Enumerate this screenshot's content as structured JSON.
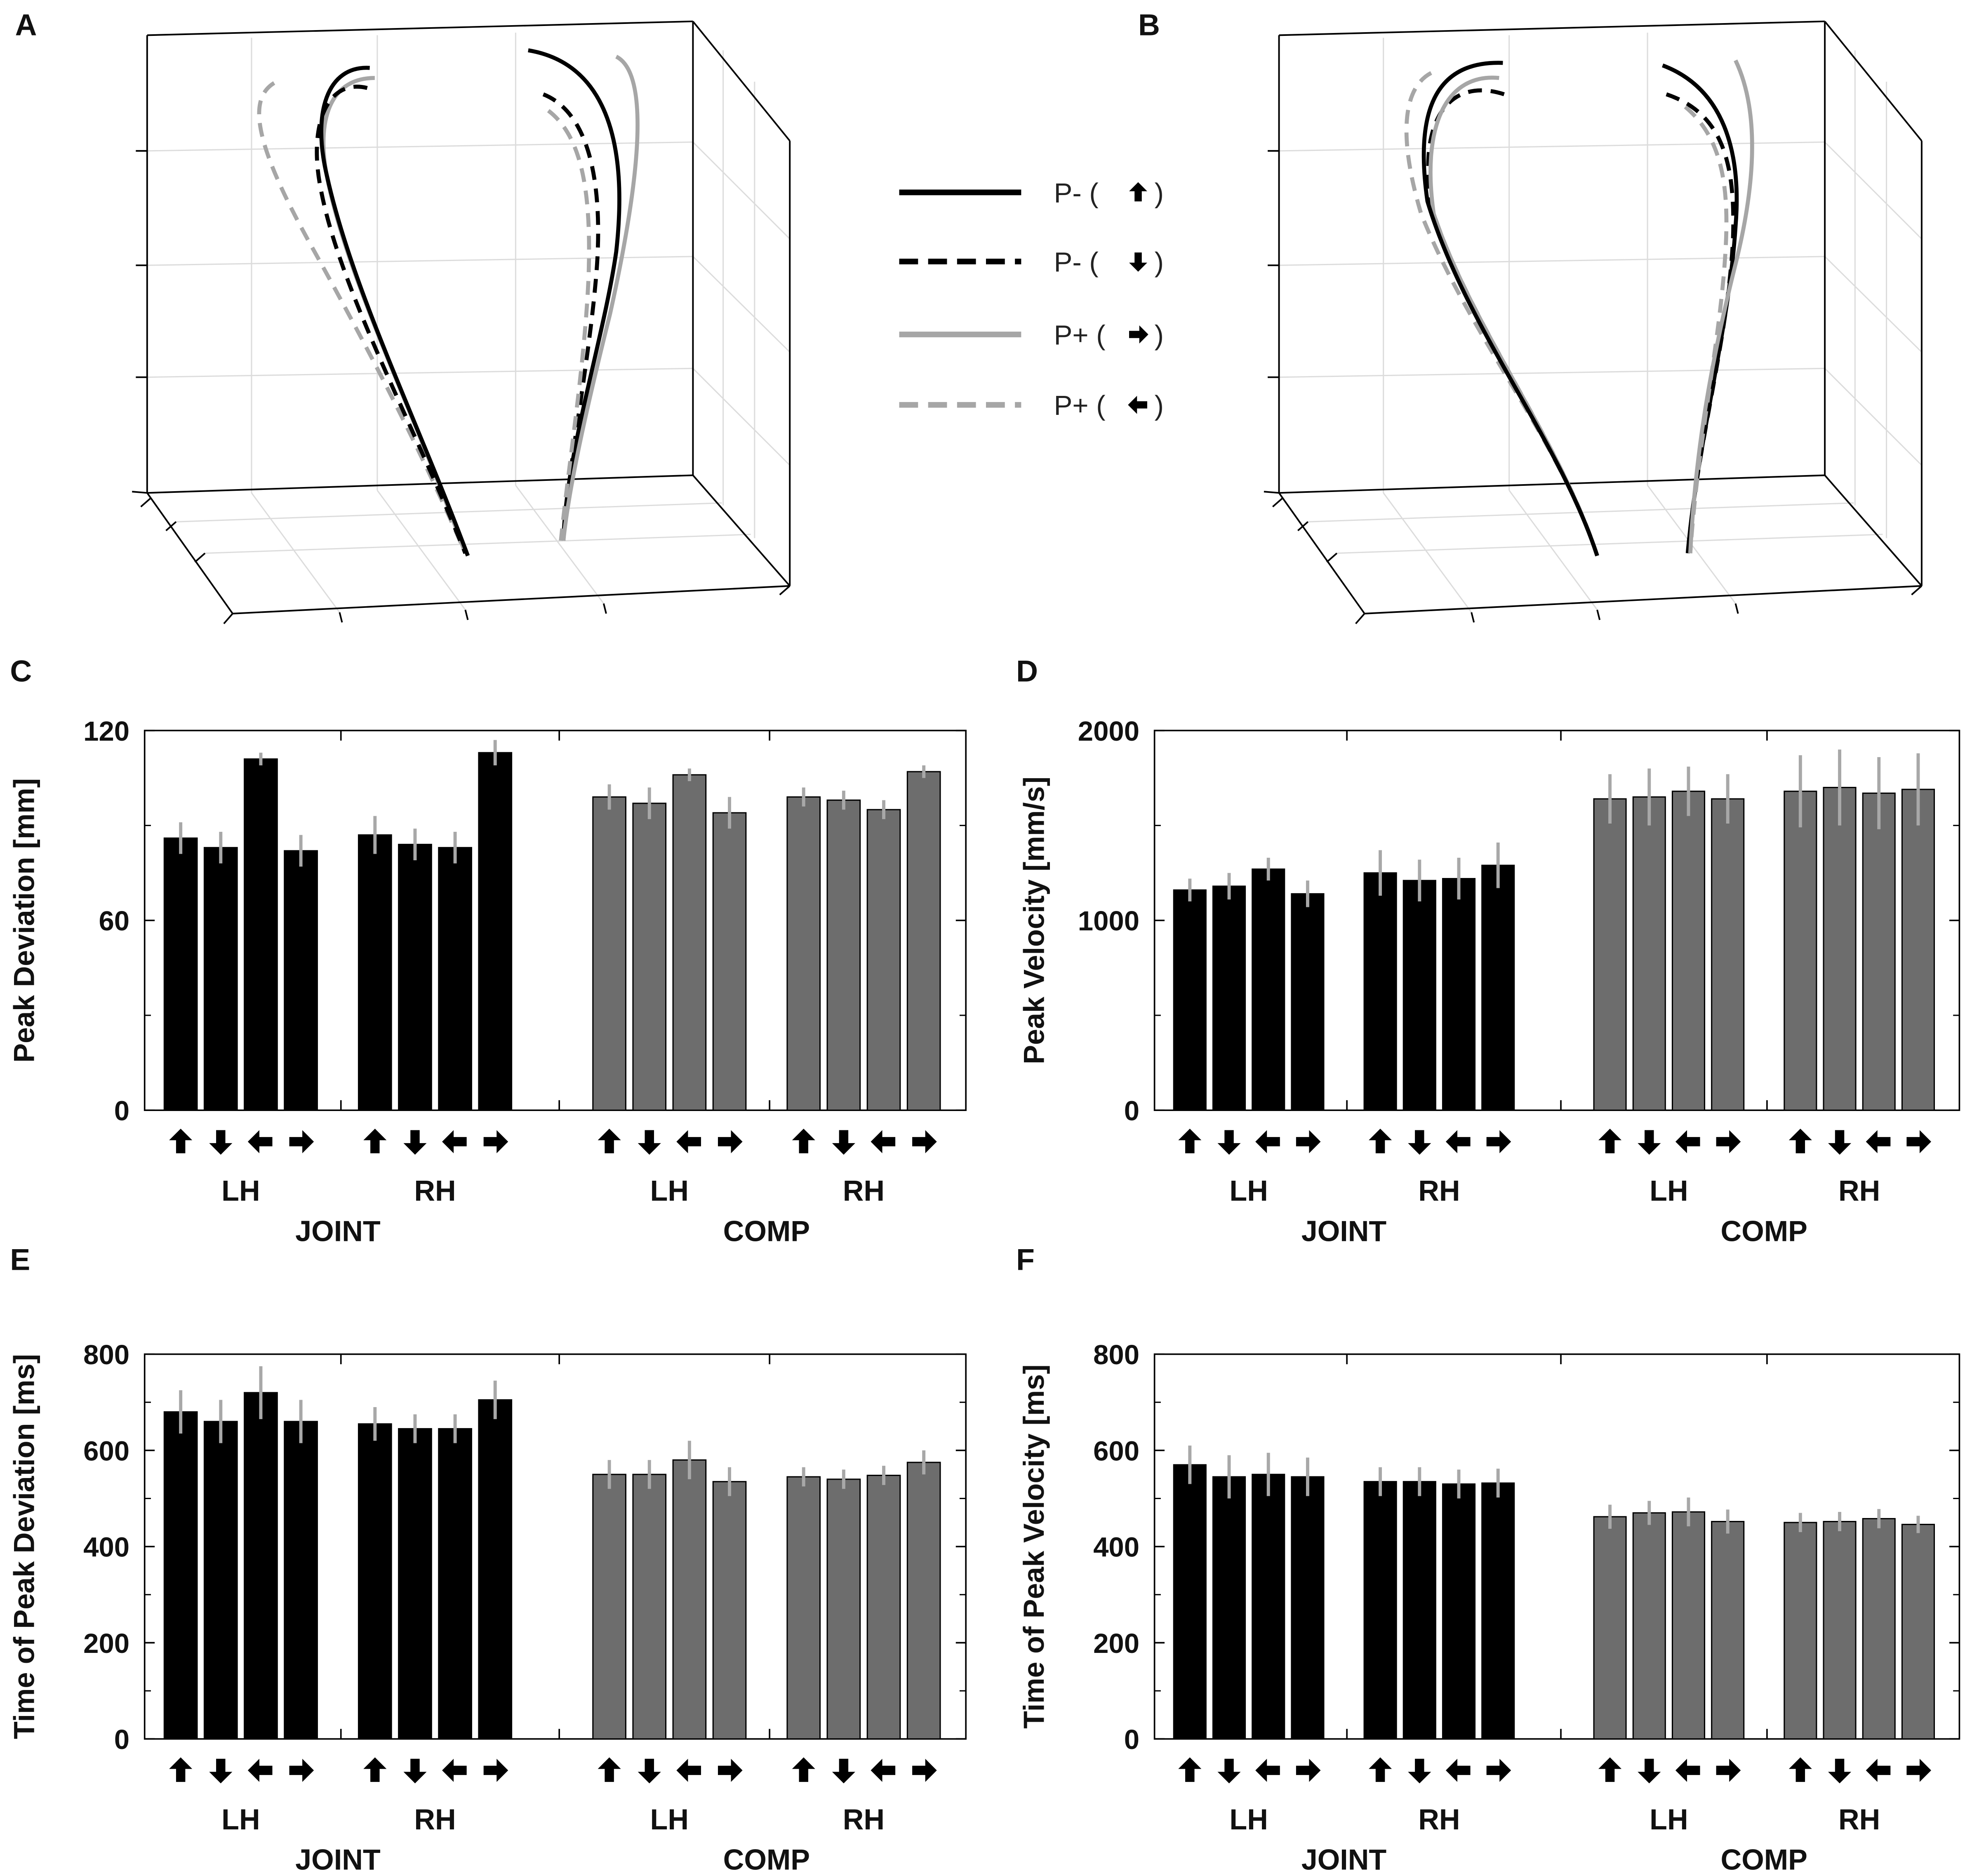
{
  "panels": {
    "A": "A",
    "B": "B",
    "C": "C",
    "D": "D",
    "E": "E",
    "F": "F"
  },
  "legend": [
    {
      "label": "P- (",
      "arrow": "up",
      "close": ")",
      "color": "#000000",
      "dash": false
    },
    {
      "label": "P- (",
      "arrow": "down",
      "close": ")",
      "color": "#000000",
      "dash": true
    },
    {
      "label": "P+ (",
      "arrow": "right",
      "close": ")",
      "color": "#a6a6a6",
      "dash": false
    },
    {
      "label": "P+ (",
      "arrow": "left",
      "close": ")",
      "color": "#a6a6a6",
      "dash": true
    }
  ],
  "colors": {
    "joint": "#000000",
    "comp": "#6d6d6d",
    "errorbar": "#a8a8a8",
    "trace_gray": "#a6a6a6"
  },
  "chart_data": [
    {
      "id": "C",
      "type": "bar",
      "ylabel": "Peak Deviation [mm]",
      "ylim": [
        0,
        120
      ],
      "yticks": [
        "0",
        "60",
        "120"
      ],
      "ytick_values": [
        0,
        60,
        120
      ],
      "arrows": [
        "up",
        "down",
        "left",
        "right"
      ],
      "hands": [
        "LH",
        "RH",
        "LH",
        "RH"
      ],
      "groups": [
        "JOINT",
        "COMP"
      ],
      "series": [
        {
          "name": "JOINT LH",
          "values": [
            86,
            83,
            111,
            82
          ],
          "errors": [
            5,
            5,
            2,
            5
          ]
        },
        {
          "name": "JOINT RH",
          "values": [
            87,
            84,
            83,
            113
          ],
          "errors": [
            6,
            5,
            5,
            4
          ]
        },
        {
          "name": "COMP LH",
          "values": [
            99,
            97,
            106,
            94
          ],
          "errors": [
            4,
            5,
            2,
            5
          ]
        },
        {
          "name": "COMP RH",
          "values": [
            99,
            98,
            95,
            107
          ],
          "errors": [
            3,
            3,
            3,
            2
          ]
        }
      ]
    },
    {
      "id": "D",
      "type": "bar",
      "ylabel": "Peak Velocity [mm/s]",
      "ylim": [
        0,
        2000
      ],
      "yticks": [
        "0",
        "1000",
        "2000"
      ],
      "ytick_values": [
        0,
        1000,
        2000
      ],
      "arrows": [
        "up",
        "down",
        "left",
        "right"
      ],
      "hands": [
        "LH",
        "RH",
        "LH",
        "RH"
      ],
      "groups": [
        "JOINT",
        "COMP"
      ],
      "series": [
        {
          "name": "JOINT LH",
          "values": [
            1160,
            1180,
            1270,
            1140
          ],
          "errors": [
            60,
            70,
            60,
            70
          ]
        },
        {
          "name": "JOINT RH",
          "values": [
            1250,
            1210,
            1220,
            1290
          ],
          "errors": [
            120,
            110,
            110,
            120
          ]
        },
        {
          "name": "COMP LH",
          "values": [
            1640,
            1650,
            1680,
            1640
          ],
          "errors": [
            130,
            150,
            130,
            130
          ]
        },
        {
          "name": "COMP RH",
          "values": [
            1680,
            1700,
            1670,
            1690
          ],
          "errors": [
            190,
            200,
            190,
            190
          ]
        }
      ]
    },
    {
      "id": "E",
      "type": "bar",
      "ylabel": "Time of Peak Deviation [ms]",
      "ylim": [
        0,
        800
      ],
      "yticks": [
        "0",
        "200",
        "400",
        "600",
        "800"
      ],
      "ytick_values": [
        0,
        200,
        400,
        600,
        800
      ],
      "arrows": [
        "up",
        "down",
        "left",
        "right"
      ],
      "hands": [
        "LH",
        "RH",
        "LH",
        "RH"
      ],
      "groups": [
        "JOINT",
        "COMP"
      ],
      "series": [
        {
          "name": "JOINT LH",
          "values": [
            680,
            660,
            720,
            660
          ],
          "errors": [
            45,
            45,
            55,
            45
          ]
        },
        {
          "name": "JOINT RH",
          "values": [
            655,
            645,
            645,
            705
          ],
          "errors": [
            35,
            30,
            30,
            40
          ]
        },
        {
          "name": "COMP LH",
          "values": [
            550,
            550,
            580,
            535
          ],
          "errors": [
            30,
            30,
            40,
            30
          ]
        },
        {
          "name": "COMP RH",
          "values": [
            545,
            540,
            548,
            575
          ],
          "errors": [
            20,
            20,
            20,
            25
          ]
        }
      ]
    },
    {
      "id": "F",
      "type": "bar",
      "ylabel": "Time of Peak Velocity [ms]",
      "ylim": [
        0,
        800
      ],
      "yticks": [
        "0",
        "200",
        "400",
        "600",
        "800"
      ],
      "ytick_values": [
        0,
        200,
        400,
        600,
        800
      ],
      "arrows": [
        "up",
        "down",
        "left",
        "right"
      ],
      "hands": [
        "LH",
        "RH",
        "LH",
        "RH"
      ],
      "groups": [
        "JOINT",
        "COMP"
      ],
      "series": [
        {
          "name": "JOINT LH",
          "values": [
            570,
            545,
            550,
            545
          ],
          "errors": [
            40,
            45,
            45,
            40
          ]
        },
        {
          "name": "JOINT RH",
          "values": [
            535,
            535,
            530,
            532
          ],
          "errors": [
            30,
            30,
            30,
            30
          ]
        },
        {
          "name": "COMP LH",
          "values": [
            462,
            470,
            472,
            452
          ],
          "errors": [
            25,
            25,
            30,
            25
          ]
        },
        {
          "name": "COMP RH",
          "values": [
            450,
            452,
            458,
            446
          ],
          "errors": [
            20,
            20,
            20,
            18
          ]
        }
      ]
    }
  ]
}
